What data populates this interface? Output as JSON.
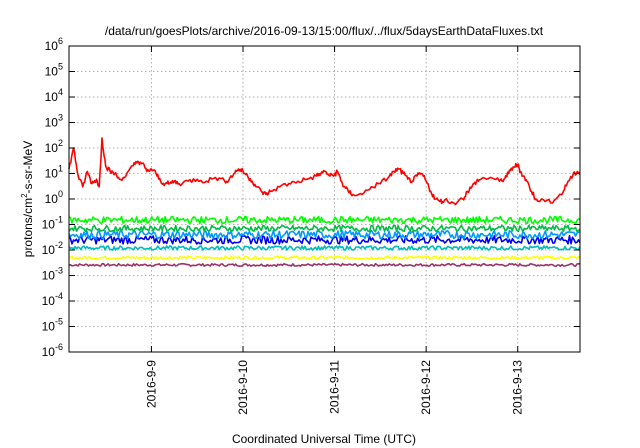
{
  "chart_data": {
    "type": "line",
    "title": "/data/run/goesPlots/archive/2016-09-13/15:00/flux/../flux/5daysEarthDataFluxes.txt",
    "xlabel": "Coordinated Universal Time (UTC)",
    "ylabel_base": "protons/cm",
    "ylabel_sup": "2",
    "ylabel_rest": "-s-sr-MeV",
    "yscale": "log",
    "ylim_exp": [
      -6,
      6
    ],
    "y_ticks": [
      {
        "base": "10",
        "exp": "-6",
        "e": -6
      },
      {
        "base": "10",
        "exp": "-5",
        "e": -5
      },
      {
        "base": "10",
        "exp": "-4",
        "e": -4
      },
      {
        "base": "10",
        "exp": "-3",
        "e": -3
      },
      {
        "base": "10",
        "exp": "-2",
        "e": -2
      },
      {
        "base": "10",
        "exp": "-1",
        "e": -1
      },
      {
        "base": "10",
        "exp": "0",
        "e": 0
      },
      {
        "base": "10",
        "exp": "1",
        "e": 1
      },
      {
        "base": "10",
        "exp": "2",
        "e": 2
      },
      {
        "base": "10",
        "exp": "3",
        "e": 3
      },
      {
        "base": "10",
        "exp": "4",
        "e": 4
      },
      {
        "base": "10",
        "exp": "5",
        "e": 5
      },
      {
        "base": "10",
        "exp": "6",
        "e": 6
      }
    ],
    "xlim_days": [
      8.1,
      13.68
    ],
    "x_ticks": [
      {
        "label": "2016-9-9",
        "day": 9
      },
      {
        "label": "2016-9-10",
        "day": 10
      },
      {
        "label": "2016-9-11",
        "day": 11
      },
      {
        "label": "2016-9-12",
        "day": 12
      },
      {
        "label": "2016-9-13",
        "day": 13
      }
    ],
    "grid": true,
    "series": [
      {
        "color": "#ff0000",
        "x": [
          8.1,
          8.15,
          8.2,
          8.25,
          8.3,
          8.35,
          8.4,
          8.43,
          8.46,
          8.5,
          8.55,
          8.6,
          8.65,
          8.72,
          8.8,
          8.85,
          8.9,
          8.95,
          9.0,
          9.05,
          9.1,
          9.15,
          9.2,
          9.25,
          9.3,
          9.4,
          9.5,
          9.6,
          9.7,
          9.8,
          9.85,
          9.9,
          9.95,
          10.0,
          10.05,
          10.1,
          10.15,
          10.2,
          10.25,
          10.3,
          10.4,
          10.5,
          10.6,
          10.7,
          10.8,
          10.85,
          10.9,
          10.95,
          11.0,
          11.03,
          11.06,
          11.1,
          11.15,
          11.2,
          11.3,
          11.4,
          11.5,
          11.6,
          11.65,
          11.7,
          11.75,
          11.8,
          11.85,
          11.9,
          11.95,
          12.0,
          12.05,
          12.1,
          12.15,
          12.2,
          12.3,
          12.4,
          12.45,
          12.5,
          12.55,
          12.6,
          12.7,
          12.8,
          12.85,
          12.9,
          12.95,
          13.0,
          13.03,
          13.06,
          13.1,
          13.15,
          13.2,
          13.3,
          13.4,
          13.5,
          13.55,
          13.6,
          13.65,
          13.68
        ],
        "values": [
          15,
          100,
          8,
          3,
          12,
          4,
          6,
          3,
          250,
          20,
          12,
          10,
          6,
          8,
          20,
          30,
          25,
          12,
          15,
          10,
          5,
          4,
          4,
          5,
          4,
          5,
          6,
          5,
          7,
          5,
          6,
          10,
          15,
          12,
          8,
          5,
          3,
          2,
          1.5,
          2,
          3,
          4,
          5,
          6,
          8,
          10,
          12,
          8,
          9,
          12,
          7,
          3,
          2,
          1.5,
          1.5,
          3,
          4,
          8,
          12,
          15,
          10,
          6,
          5,
          8,
          10,
          5,
          2,
          1,
          0.8,
          0.9,
          0.7,
          1,
          2,
          3,
          5,
          6,
          7,
          5,
          6,
          10,
          18,
          22,
          12,
          8,
          5,
          2,
          1,
          0.8,
          0.9,
          2,
          5,
          8,
          12,
          10
        ]
      },
      {
        "color": "#00ff00",
        "x": [
          8.1,
          13.68
        ],
        "values": [
          0.15,
          0.15
        ],
        "noise": 0.14
      },
      {
        "color": "#00bb44",
        "x": [
          8.1,
          13.68
        ],
        "values": [
          0.07,
          0.07
        ],
        "noise": 0.12
      },
      {
        "color": "#0099ff",
        "x": [
          8.1,
          13.68
        ],
        "values": [
          0.04,
          0.04
        ],
        "noise": 0.16
      },
      {
        "color": "#0000ee",
        "x": [
          8.1,
          13.68
        ],
        "values": [
          0.025,
          0.025
        ],
        "noise": 0.16
      },
      {
        "color": "#00bbbb",
        "x": [
          8.1,
          13.68
        ],
        "values": [
          0.012,
          0.012
        ],
        "noise": 0.08
      },
      {
        "color": "#ffff00",
        "x": [
          8.1,
          13.68
        ],
        "values": [
          0.005,
          0.005
        ],
        "noise": 0.06
      },
      {
        "color": "#993366",
        "x": [
          8.1,
          13.68
        ],
        "values": [
          0.0026,
          0.0026
        ],
        "noise": 0.05
      }
    ]
  }
}
